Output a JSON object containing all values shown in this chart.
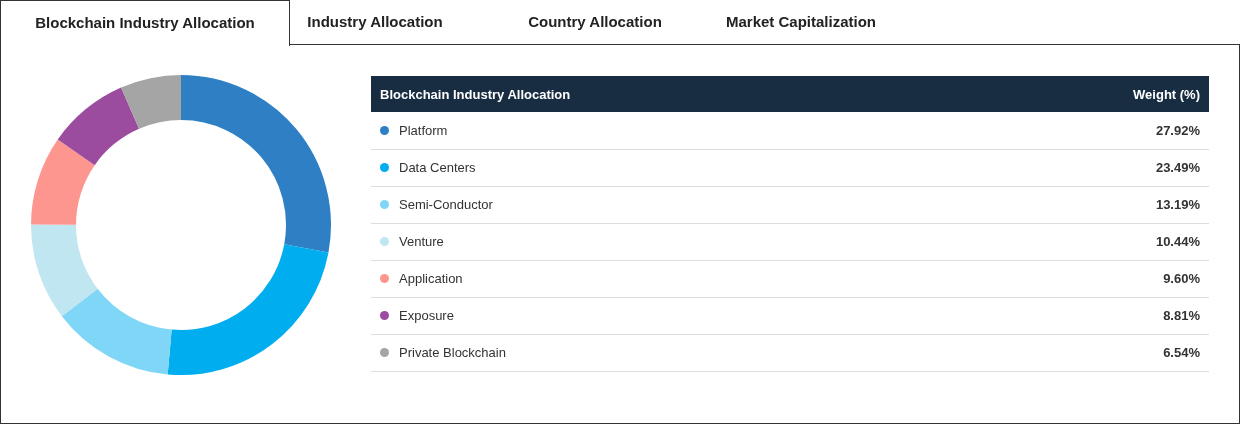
{
  "chart_data": {
    "type": "donut",
    "title": "Blockchain Industry Allocation",
    "legend_title": "Blockchain Industry Allocation",
    "annotations": [
      "Industry Allocation",
      "Country Allocation",
      "Market Capitalization",
      "Weight (%)"
    ],
    "categories": [
      "Platform",
      "Data Centers",
      "Semi-Conductor",
      "Venture",
      "Application",
      "Exposure",
      "Private Blockchain"
    ],
    "values": [
      27.92,
      23.49,
      13.19,
      10.44,
      9.6,
      8.81,
      6.54
    ],
    "value_labels": [
      "27.92%",
      "23.49%",
      "13.19%",
      "10.44%",
      "9.60%",
      "8.81%",
      "6.54%"
    ],
    "colors": [
      "#2e7fc4",
      "#00adef",
      "#80d6f7",
      "#c0e6f1",
      "#fd968f",
      "#9c4c9e",
      "#a5a5a5"
    ],
    "legend": "right"
  }
}
